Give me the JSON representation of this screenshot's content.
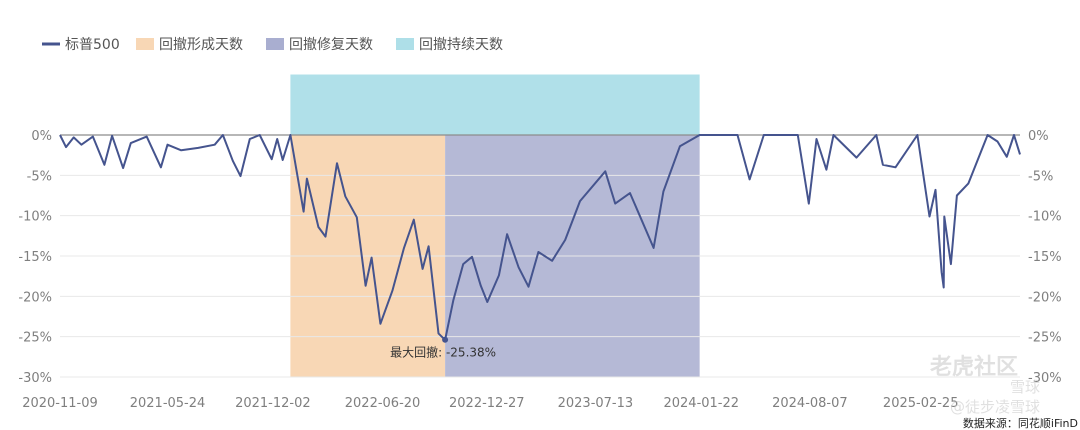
{
  "chart_data": {
    "type": "line",
    "title": "",
    "xlabel": "",
    "ylabel": "",
    "ylim": [
      -30,
      0
    ],
    "y_ticks": [
      "0%",
      "-5%",
      "-10%",
      "-15%",
      "-20%",
      "-25%",
      "-30%"
    ],
    "y_tick_values": [
      0,
      -5,
      -10,
      -15,
      -20,
      -25,
      -30
    ],
    "x_ticks": [
      "2020-11-09",
      "2021-05-24",
      "2021-12-02",
      "2022-06-20",
      "2022-12-27",
      "2023-07-13",
      "2024-01-22",
      "2024-08-07",
      "2025-02-25"
    ],
    "x_range": [
      "2020-11-09",
      "2025-08-25"
    ],
    "grid": true,
    "legend_position": "top-left",
    "legend": [
      {
        "label": "标普500",
        "color": "#45548e",
        "kind": "line"
      },
      {
        "label": "回撤形成天数",
        "color": "#f8d7b5",
        "kind": "rect"
      },
      {
        "label": "回撤修复天数",
        "color": "#a9aed0",
        "kind": "rect"
      },
      {
        "label": "回撤持续天数",
        "color": "#aedfe8",
        "kind": "rect"
      }
    ],
    "bands": [
      {
        "name": "回撤形成天数",
        "start": "2022-01-03",
        "end": "2022-10-12",
        "ymin": -30,
        "ymax": 0,
        "color": "#f8d7b5"
      },
      {
        "name": "回撤修复天数",
        "start": "2022-10-12",
        "end": "2024-01-19",
        "ymin": -30,
        "ymax": 0,
        "color": "#b5b9d6"
      },
      {
        "name": "回撤持续天数",
        "start": "2022-01-03",
        "end": "2024-01-19",
        "ymin": 0,
        "ymax": 7.5,
        "color": "#b0e0e9"
      }
    ],
    "annotation": {
      "text": "最大回撤: -25.38%",
      "x": "2022-10-12",
      "y": -25.38
    },
    "series": [
      {
        "name": "标普500",
        "color": "#45548e",
        "points": [
          [
            "2020-11-09",
            0
          ],
          [
            "2020-11-20",
            -1.5
          ],
          [
            "2020-12-04",
            -0.3
          ],
          [
            "2020-12-18",
            -1.2
          ],
          [
            "2021-01-08",
            -0.2
          ],
          [
            "2021-01-29",
            -3.7
          ],
          [
            "2021-02-12",
            -0.1
          ],
          [
            "2021-03-04",
            -4.1
          ],
          [
            "2021-03-18",
            -1.0
          ],
          [
            "2021-04-16",
            -0.2
          ],
          [
            "2021-05-12",
            -4.0
          ],
          [
            "2021-05-24",
            -1.2
          ],
          [
            "2021-06-18",
            -1.9
          ],
          [
            "2021-07-19",
            -1.6
          ],
          [
            "2021-08-18",
            -1.2
          ],
          [
            "2021-09-02",
            0
          ],
          [
            "2021-09-20",
            -3.2
          ],
          [
            "2021-10-04",
            -5.1
          ],
          [
            "2021-10-21",
            -0.5
          ],
          [
            "2021-11-08",
            0
          ],
          [
            "2021-11-30",
            -3.0
          ],
          [
            "2021-12-10",
            -0.5
          ],
          [
            "2021-12-20",
            -3.1
          ],
          [
            "2022-01-03",
            0
          ],
          [
            "2022-01-27",
            -9.5
          ],
          [
            "2022-02-02",
            -5.4
          ],
          [
            "2022-02-23",
            -11.4
          ],
          [
            "2022-03-08",
            -12.6
          ],
          [
            "2022-03-29",
            -3.5
          ],
          [
            "2022-04-13",
            -7.6
          ],
          [
            "2022-05-04",
            -10.2
          ],
          [
            "2022-05-20",
            -18.7
          ],
          [
            "2022-05-31",
            -15.2
          ],
          [
            "2022-06-16",
            -23.4
          ],
          [
            "2022-07-08",
            -19.3
          ],
          [
            "2022-07-29",
            -14.0
          ],
          [
            "2022-08-16",
            -10.5
          ],
          [
            "2022-09-01",
            -16.6
          ],
          [
            "2022-09-12",
            -13.8
          ],
          [
            "2022-09-30",
            -24.6
          ],
          [
            "2022-10-12",
            -25.4
          ],
          [
            "2022-10-27",
            -20.5
          ],
          [
            "2022-11-14",
            -16.0
          ],
          [
            "2022-11-30",
            -15.1
          ],
          [
            "2022-12-16",
            -18.7
          ],
          [
            "2022-12-28",
            -20.7
          ],
          [
            "2023-01-18",
            -17.4
          ],
          [
            "2023-02-02",
            -12.3
          ],
          [
            "2023-02-23",
            -16.4
          ],
          [
            "2023-03-13",
            -18.8
          ],
          [
            "2023-03-31",
            -14.5
          ],
          [
            "2023-04-25",
            -15.6
          ],
          [
            "2023-05-19",
            -13.0
          ],
          [
            "2023-06-15",
            -8.2
          ],
          [
            "2023-07-31",
            -4.5
          ],
          [
            "2023-08-18",
            -8.5
          ],
          [
            "2023-09-14",
            -7.2
          ],
          [
            "2023-10-27",
            -14.0
          ],
          [
            "2023-11-14",
            -7.0
          ],
          [
            "2023-12-14",
            -1.4
          ],
          [
            "2024-01-19",
            0
          ],
          [
            "2024-03-01",
            0
          ],
          [
            "2024-03-28",
            0
          ],
          [
            "2024-04-19",
            -5.5
          ],
          [
            "2024-05-15",
            0
          ],
          [
            "2024-06-18",
            0
          ],
          [
            "2024-07-16",
            0
          ],
          [
            "2024-08-05",
            -8.5
          ],
          [
            "2024-08-19",
            -0.5
          ],
          [
            "2024-09-06",
            -4.3
          ],
          [
            "2024-09-19",
            0
          ],
          [
            "2024-10-31",
            -2.8
          ],
          [
            "2024-12-06",
            0
          ],
          [
            "2024-12-18",
            -3.7
          ],
          [
            "2025-01-10",
            -4.0
          ],
          [
            "2025-02-19",
            0
          ],
          [
            "2025-03-13",
            -10.1
          ],
          [
            "2025-03-24",
            -6.8
          ],
          [
            "2025-04-04",
            -17.0
          ],
          [
            "2025-04-08",
            -18.9
          ],
          [
            "2025-04-09",
            -10.1
          ],
          [
            "2025-04-21",
            -16.0
          ],
          [
            "2025-05-02",
            -7.5
          ],
          [
            "2025-05-23",
            -6.0
          ],
          [
            "2025-06-27",
            0
          ],
          [
            "2025-07-15",
            -0.8
          ],
          [
            "2025-08-01",
            -2.7
          ],
          [
            "2025-08-14",
            0
          ],
          [
            "2025-08-25",
            -2.4
          ]
        ]
      }
    ]
  },
  "footer": {
    "source": "数据来源：同花顺iFinD"
  },
  "watermark": {
    "line1": "老虎社区",
    "line2": "雪球",
    "line3": "@徒步凌雪球"
  }
}
